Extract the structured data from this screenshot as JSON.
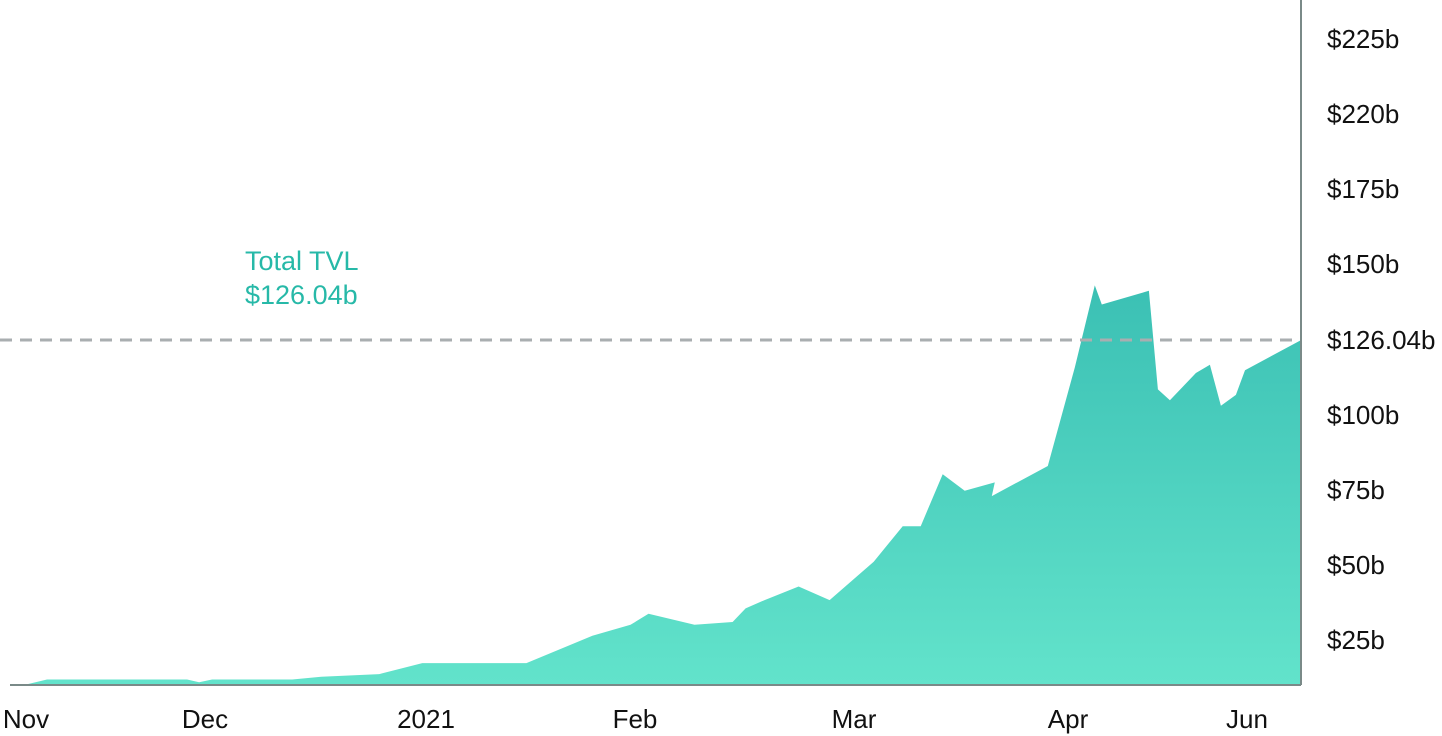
{
  "chart_data": {
    "type": "area",
    "title": "",
    "xlabel": "",
    "ylabel": "",
    "x_tick_labels": [
      "Nov",
      "Dec",
      "2021",
      "Feb",
      "Mar",
      "Apr",
      "Jun"
    ],
    "y_tick_labels": [
      "$225b",
      "$220b",
      "$175b",
      "$150b",
      "$126.04b",
      "$100b",
      "$75b",
      "$50b",
      "$25b"
    ],
    "reference_line": {
      "label": "$126.04b",
      "value": 126.04,
      "style": "dashed"
    },
    "annotation": {
      "title": "Total TVL",
      "value": "$126.04b"
    },
    "series": [
      {
        "values": [
          0,
          2,
          2,
          2,
          2,
          2,
          1,
          2,
          2,
          2,
          2,
          3,
          4,
          8,
          8,
          8,
          8,
          18,
          22,
          26,
          22,
          23,
          28,
          31,
          36,
          31,
          45,
          58,
          58,
          77,
          71,
          74,
          69,
          80,
          116,
          146,
          139,
          144,
          108,
          104,
          114,
          117,
          102,
          106,
          115,
          126
        ],
        "color": "#47cfbd"
      }
    ],
    "x": [
      0,
      23,
      31,
      60,
      110,
      163,
      175,
      188,
      212,
      243,
      268,
      297,
      355,
      398,
      427,
      466,
      502,
      568,
      606,
      624,
      670,
      708,
      721,
      740,
      774,
      805,
      849,
      878,
      896,
      918,
      940,
      970,
      967,
      1023,
      1050,
      1070,
      1077,
      1124,
      1133,
      1145,
      1171,
      1185,
      1196,
      1211,
      1220,
      1276
    ],
    "colors": {
      "fill_top": "#3bc0b4",
      "fill_bottom": "#62e3cb",
      "axis": "#7a8a88",
      "dashed": "#a9aeb0",
      "annotation": "#27b9a8"
    }
  }
}
